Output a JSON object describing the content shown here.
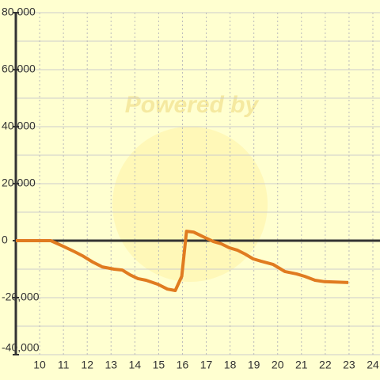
{
  "chart_data": {
    "type": "line",
    "watermark": "Powered by",
    "x": [
      9,
      10.47,
      10.97,
      11.47,
      11.8,
      12.23,
      12.63,
      13.13,
      13.47,
      13.8,
      14.13,
      14.47,
      14.97,
      15.37,
      15.7,
      15.97,
      16.17,
      16.47,
      16.87,
      17.3,
      17.63,
      17.97,
      18.3,
      18.63,
      18.97,
      19.3,
      19.8,
      20.3,
      20.8,
      21.13,
      21.57,
      21.97,
      22.97
    ],
    "series": [
      {
        "color": "#e07b20",
        "values": [
          0,
          0,
          -1900,
          -3900,
          -5300,
          -7500,
          -9200,
          -10000,
          -10300,
          -12000,
          -13300,
          -13900,
          -15300,
          -17000,
          -17500,
          -12500,
          3300,
          3000,
          1400,
          -300,
          -1100,
          -2500,
          -3300,
          -4700,
          -6400,
          -7200,
          -8300,
          -10800,
          -11700,
          -12500,
          -13900,
          -14400,
          -14700
        ]
      }
    ],
    "xlim": [
      9,
      24.3
    ],
    "xticks": [
      10,
      11,
      12,
      13,
      14,
      15,
      16,
      17,
      18,
      19,
      20,
      21,
      22,
      23,
      24
    ],
    "ylim": [
      -40000,
      80000
    ],
    "yticks": [
      {
        "value": -40000,
        "label": "-40,000"
      },
      {
        "value": -20000,
        "label": "-20,000"
      },
      0,
      {
        "value": 20000,
        "label": "20,000"
      },
      {
        "value": 40000,
        "label": "40,000"
      },
      {
        "value": 60000,
        "label": "60,000"
      },
      {
        "value": 80000,
        "label": "80,000"
      }
    ],
    "minor_yticks": [
      -30000,
      -10000,
      10000,
      30000,
      50000,
      70000
    ],
    "grid": true
  }
}
